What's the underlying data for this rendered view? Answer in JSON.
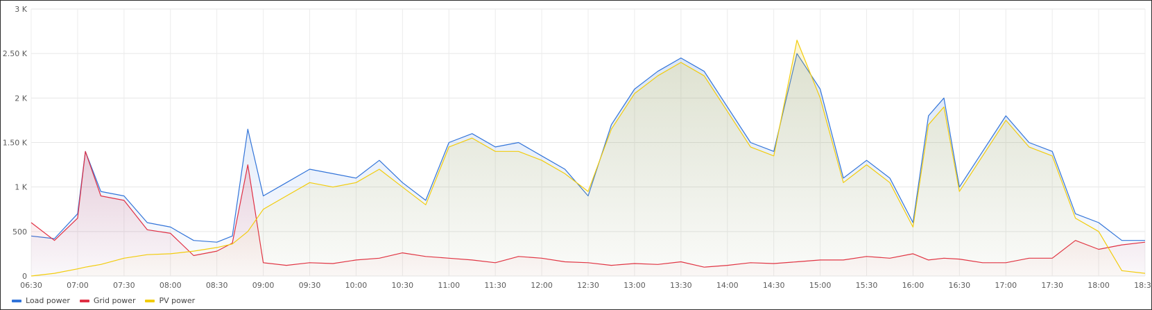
{
  "chart_data": {
    "type": "area",
    "x_unit": "time",
    "ylim": [
      0,
      3000
    ],
    "y_ticks": [
      0,
      500,
      1000,
      1500,
      2000,
      2500,
      3000
    ],
    "y_tick_labels": [
      "0",
      "500",
      "1 K",
      "1.50 K",
      "2 K",
      "2.50 K",
      "3 K"
    ],
    "x_ticks": [
      "06:30",
      "07:00",
      "07:30",
      "08:00",
      "08:30",
      "09:00",
      "09:30",
      "10:00",
      "10:30",
      "11:00",
      "11:30",
      "12:00",
      "12:30",
      "13:00",
      "13:30",
      "14:00",
      "14:30",
      "15:00",
      "15:30",
      "16:00",
      "16:30",
      "17:00",
      "17:30",
      "18:00",
      "18:30"
    ],
    "grid": true,
    "legend_position": "bottom-left",
    "x": [
      "06:30",
      "06:45",
      "07:00",
      "07:05",
      "07:15",
      "07:30",
      "07:45",
      "08:00",
      "08:15",
      "08:30",
      "08:40",
      "08:50",
      "09:00",
      "09:15",
      "09:30",
      "09:45",
      "10:00",
      "10:15",
      "10:30",
      "10:45",
      "11:00",
      "11:15",
      "11:30",
      "11:45",
      "12:00",
      "12:15",
      "12:30",
      "12:45",
      "13:00",
      "13:15",
      "13:30",
      "13:45",
      "14:00",
      "14:15",
      "14:30",
      "14:45",
      "15:00",
      "15:15",
      "15:30",
      "15:45",
      "16:00",
      "16:10",
      "16:20",
      "16:30",
      "16:45",
      "17:00",
      "17:15",
      "17:30",
      "17:45",
      "18:00",
      "18:15",
      "18:30"
    ],
    "series": [
      {
        "name": "Load power",
        "color": "#3274d9",
        "values": [
          450,
          420,
          700,
          1400,
          950,
          900,
          600,
          550,
          400,
          380,
          450,
          1650,
          900,
          1050,
          1200,
          1150,
          1100,
          1300,
          1050,
          850,
          1500,
          1600,
          1450,
          1500,
          1350,
          1200,
          900,
          1700,
          2100,
          2300,
          2450,
          2300,
          1900,
          1500,
          1400,
          2500,
          2100,
          1100,
          1300,
          1100,
          600,
          1800,
          2000,
          1000,
          1400,
          1800,
          1500,
          1400,
          700,
          600,
          400,
          400
        ],
        "fill": true
      },
      {
        "name": "Grid power",
        "color": "#e02f44",
        "values": [
          600,
          400,
          650,
          1400,
          900,
          850,
          520,
          480,
          230,
          280,
          370,
          1250,
          150,
          120,
          150,
          140,
          180,
          200,
          260,
          220,
          200,
          180,
          150,
          220,
          200,
          160,
          150,
          120,
          140,
          130,
          160,
          100,
          120,
          150,
          140,
          160,
          180,
          180,
          220,
          200,
          250,
          180,
          200,
          190,
          150,
          150,
          200,
          200,
          400,
          300,
          350,
          380
        ],
        "fill": true
      },
      {
        "name": "PV power",
        "color": "#f2cc0c",
        "values": [
          0,
          30,
          80,
          100,
          130,
          200,
          240,
          250,
          280,
          320,
          360,
          500,
          750,
          900,
          1050,
          1000,
          1050,
          1200,
          1000,
          800,
          1450,
          1550,
          1400,
          1400,
          1300,
          1150,
          950,
          1650,
          2050,
          2250,
          2400,
          2250,
          1850,
          1450,
          1350,
          2650,
          2000,
          1050,
          1250,
          1050,
          550,
          1700,
          1900,
          950,
          1350,
          1750,
          1450,
          1350,
          650,
          500,
          60,
          30
        ],
        "fill": true
      }
    ]
  }
}
